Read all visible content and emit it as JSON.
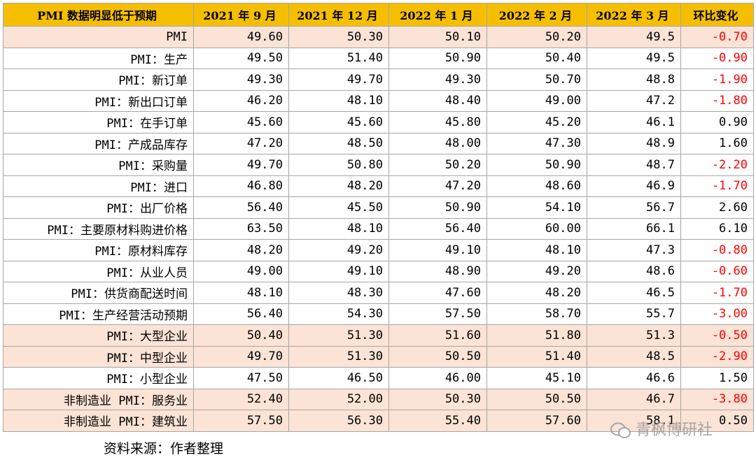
{
  "table": {
    "header": [
      "PMI 数据明显低于预期",
      "2021 年 9 月",
      "2021 年 12 月",
      "2022 年 1 月",
      "2022 年 2 月",
      "2022 年 3 月",
      "环比变化"
    ],
    "rows": [
      [
        "PMI",
        "49.60",
        "50.30",
        "50.10",
        "50.20",
        "49.5",
        "-0.70"
      ],
      [
        "PMI：生产",
        "49.50",
        "51.40",
        "50.90",
        "50.40",
        "49.5",
        "-0.90"
      ],
      [
        "PMI：新订单",
        "49.30",
        "49.70",
        "49.30",
        "50.70",
        "48.8",
        "-1.90"
      ],
      [
        "PMI：新出口订单",
        "46.20",
        "48.10",
        "48.40",
        "49.00",
        "47.2",
        "-1.80"
      ],
      [
        "PMI：在手订单",
        "45.60",
        "45.60",
        "45.80",
        "45.20",
        "46.1",
        "0.90"
      ],
      [
        "PMI：产成品库存",
        "47.20",
        "48.50",
        "48.00",
        "47.30",
        "48.9",
        "1.60"
      ],
      [
        "PMI：采购量",
        "49.70",
        "50.80",
        "50.20",
        "50.90",
        "48.7",
        "-2.20"
      ],
      [
        "PMI：进口",
        "46.80",
        "48.20",
        "47.20",
        "48.60",
        "46.9",
        "-1.70"
      ],
      [
        "PMI：出厂价格",
        "56.40",
        "45.50",
        "50.90",
        "54.10",
        "56.7",
        "2.60"
      ],
      [
        "PMI：主要原材料购进价格",
        "63.50",
        "48.10",
        "56.40",
        "60.00",
        "66.1",
        "6.10"
      ],
      [
        "PMI：原材料库存",
        "48.20",
        "49.20",
        "49.10",
        "48.10",
        "47.3",
        "-0.80"
      ],
      [
        "PMI：从业人员",
        "49.00",
        "49.10",
        "48.90",
        "49.20",
        "48.6",
        "-0.60"
      ],
      [
        "PMI：供货商配送时间",
        "48.10",
        "48.30",
        "47.60",
        "48.20",
        "46.5",
        "-1.70"
      ],
      [
        "PMI：生产经营活动预期",
        "56.40",
        "54.30",
        "57.50",
        "58.70",
        "55.7",
        "-3.00"
      ],
      [
        "PMI：大型企业",
        "50.40",
        "51.30",
        "51.60",
        "51.80",
        "51.3",
        "-0.50"
      ],
      [
        "PMI：中型企业",
        "49.70",
        "51.30",
        "50.50",
        "51.40",
        "48.5",
        "-2.90"
      ],
      [
        "PMI：小型企业",
        "47.50",
        "46.50",
        "46.00",
        "45.10",
        "46.6",
        "1.50"
      ],
      [
        "非制造业 PMI：服务业",
        "52.40",
        "52.00",
        "50.30",
        "50.50",
        "46.7",
        "-3.80"
      ],
      [
        "非制造业 PMI：建筑业",
        "57.50",
        "56.30",
        "55.40",
        "57.60",
        "58.1",
        "0.50"
      ]
    ]
  },
  "source": "资料来源：作者整理",
  "watermark": "青枫博研社"
}
